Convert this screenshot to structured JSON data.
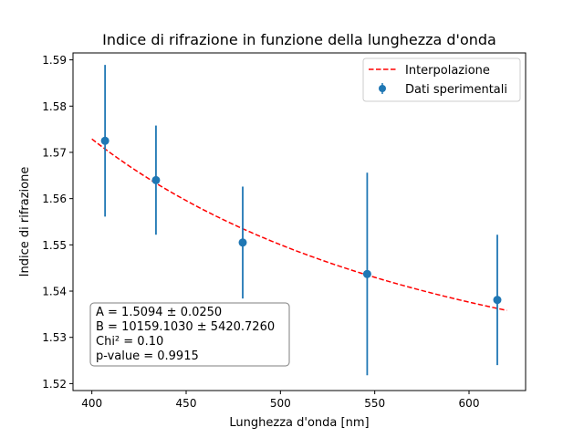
{
  "chart_data": {
    "type": "scatter",
    "title": "Indice di rifrazione in funzione della lunghezza d'onda",
    "xlabel": "Lunghezza d'onda [nm]",
    "ylabel": "Indice di rifrazione",
    "xlim": [
      390,
      630
    ],
    "ylim": [
      1.5185,
      1.5915
    ],
    "xticks": [
      400,
      450,
      500,
      550,
      600
    ],
    "xtick_labels": [
      "400",
      "450",
      "500",
      "550",
      "600"
    ],
    "yticks": [
      1.52,
      1.53,
      1.54,
      1.55,
      1.56,
      1.57,
      1.58,
      1.59
    ],
    "ytick_labels": [
      "1.52",
      "1.53",
      "1.54",
      "1.55",
      "1.56",
      "1.57",
      "1.58",
      "1.59"
    ],
    "grid": false,
    "legend_position": "top-right",
    "series": [
      {
        "name": "Dati sperimentali",
        "kind": "errorbar",
        "color": "#1f77b4",
        "x": [
          407,
          434,
          480,
          546,
          615
        ],
        "y": [
          1.5725,
          1.564,
          1.5505,
          1.5437,
          1.5381
        ],
        "yerr": [
          0.0164,
          0.0118,
          0.0121,
          0.0219,
          0.0141
        ]
      },
      {
        "name": "Interpolazione",
        "kind": "fit-curve",
        "color": "#ff0000",
        "dash": "dashed",
        "model": "n = A + B / lambda^2",
        "A": 1.5094,
        "B": 10159.103,
        "x_range": [
          400,
          620
        ]
      }
    ],
    "annotation": [
      "A = 1.5094 ± 0.0250",
      "B = 10159.1030 ± 5420.7260",
      "Chi² = 0.10",
      "p-value = 0.9915"
    ]
  }
}
